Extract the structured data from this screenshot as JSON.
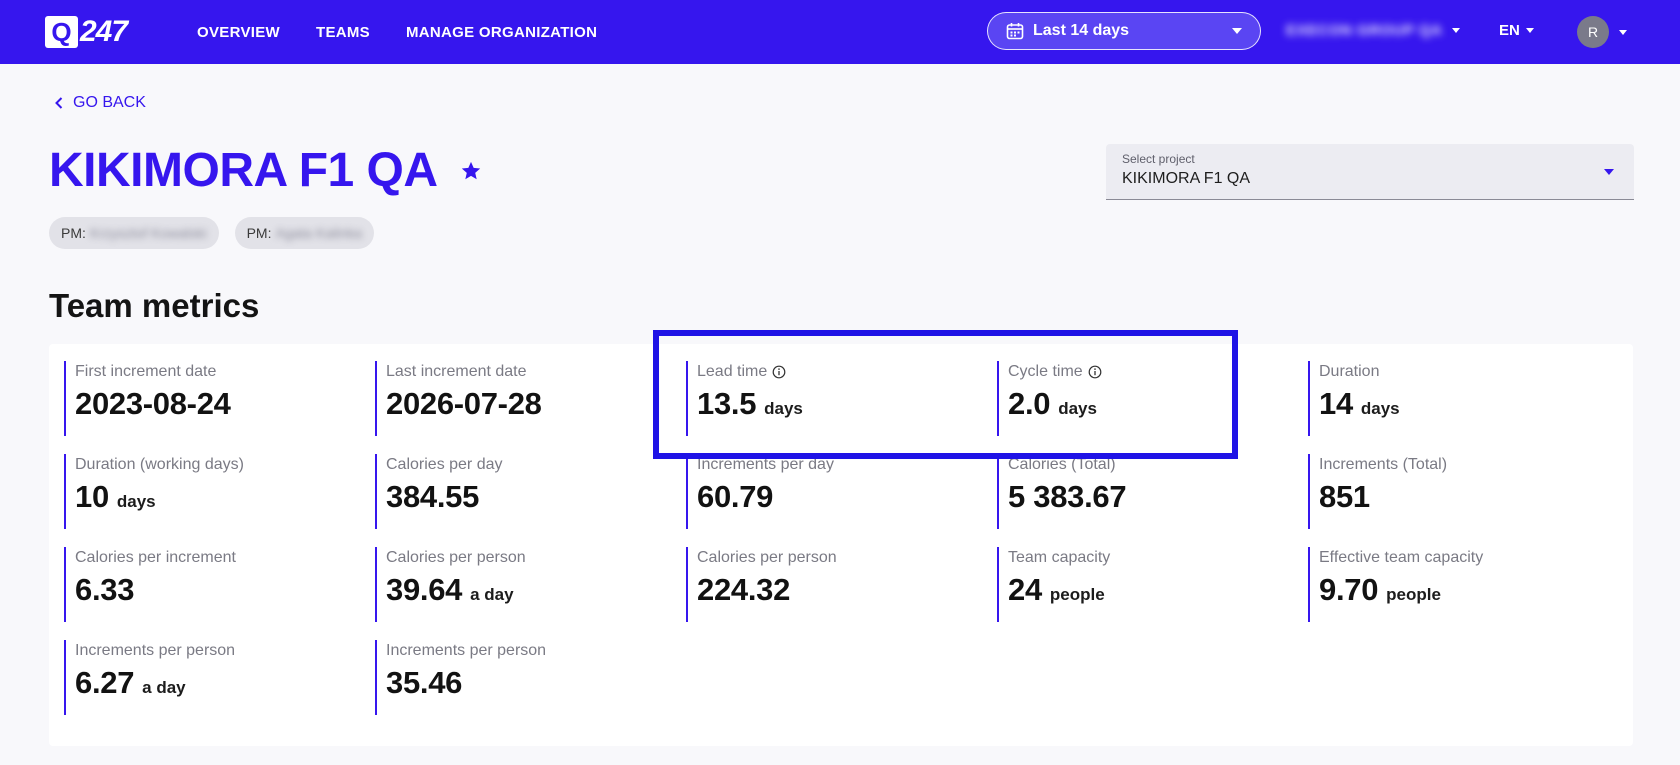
{
  "header": {
    "logo_mark": "Q",
    "logo_text": "247",
    "nav": [
      "OVERVIEW",
      "TEAMS",
      "MANAGE ORGANIZATION"
    ],
    "date_range": "Last 14 days",
    "organization": "EXECON GROUP QA",
    "language": "EN",
    "avatar_initial": "R",
    "accent_color": "#3616ee"
  },
  "page": {
    "go_back": "GO BACK",
    "title": "KIKIMORA F1 QA",
    "pm_chips": [
      {
        "prefix": "PM:",
        "name": "Krzysztof Kowalski"
      },
      {
        "prefix": "PM:",
        "name": "Agata Kalinka"
      }
    ],
    "project_select": {
      "label": "Select project",
      "value": "KIKIMORA F1 QA"
    },
    "section_title": "Team metrics"
  },
  "metrics": [
    {
      "label": "First increment date",
      "value": "2023-08-24",
      "unit": ""
    },
    {
      "label": "Last increment date",
      "value": "2026-07-28",
      "unit": ""
    },
    {
      "label": "Lead time",
      "value": "13.5",
      "unit": "days",
      "info": true
    },
    {
      "label": "Cycle time",
      "value": "2.0",
      "unit": "days",
      "info": true
    },
    {
      "label": "Duration",
      "value": "14",
      "unit": "days"
    },
    {
      "label": "Duration (working days)",
      "value": "10",
      "unit": "days"
    },
    {
      "label": "Calories per day",
      "value": "384.55",
      "unit": ""
    },
    {
      "label": "Increments per day",
      "value": "60.79",
      "unit": ""
    },
    {
      "label": "Calories (Total)",
      "value": "5 383.67",
      "unit": ""
    },
    {
      "label": "Increments (Total)",
      "value": "851",
      "unit": ""
    },
    {
      "label": "Calories per increment",
      "value": "6.33",
      "unit": ""
    },
    {
      "label": "Calories per person",
      "value": "39.64",
      "unit": "a day"
    },
    {
      "label": "Calories per person",
      "value": "224.32",
      "unit": ""
    },
    {
      "label": "Team capacity",
      "value": "24",
      "unit": "people"
    },
    {
      "label": "Effective team capacity",
      "value": "9.70",
      "unit": "people"
    },
    {
      "label": "Increments per person",
      "value": "6.27",
      "unit": "a day"
    },
    {
      "label": "Increments per person",
      "value": "35.46",
      "unit": ""
    }
  ]
}
